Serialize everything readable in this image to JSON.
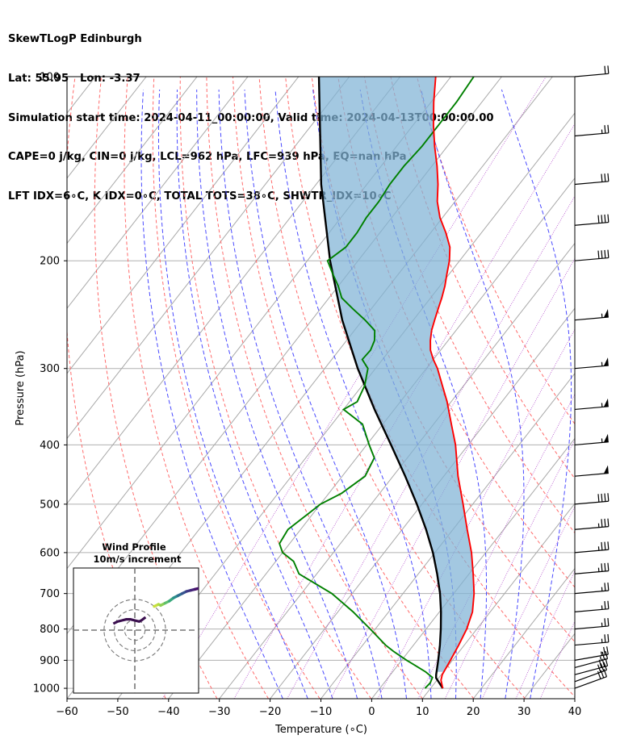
{
  "title_lines": [
    "SkewTLogP Edinburgh",
    "Lat: 55.95   Lon: -3.37",
    "Simulation start time: 2024-04-11_00:00:00, Valid time: 2024-04-13T00:00:00.00",
    "CAPE=0 j/kg, CIN=0 j/kg, LCL=962 hPa, LFC=939 hPa, EQ=nan hPa",
    "LFT IDX=6∘C, K IDX=0∘C, TOTAL TOTS=38∘C, SHWTR_IDX=10∘C"
  ],
  "chart_data": {
    "type": "skewt-logp",
    "xlabel": "Temperature (∘C)",
    "ylabel": "Pressure (hPa)",
    "xlim": [
      -60,
      40
    ],
    "ylim": [
      1040,
      100
    ],
    "x_ticks": [
      -60,
      -50,
      -40,
      -30,
      -20,
      -10,
      0,
      10,
      20,
      30,
      40
    ],
    "x_tick_labels": [
      "−60",
      "−50",
      "−40",
      "−30",
      "−20",
      "−10",
      "0",
      "10",
      "20",
      "30",
      "40"
    ],
    "y_ticks": [
      1000,
      900,
      800,
      700,
      600,
      500,
      400,
      300,
      200,
      100
    ],
    "y_tick_labels": [
      "1000",
      "900",
      "800",
      "700",
      "600",
      "500",
      "400",
      "300",
      "200",
      "100"
    ],
    "temperature": {
      "color": "#ff0000",
      "pressure": [
        1000,
        970,
        950,
        900,
        850,
        800,
        750,
        700,
        650,
        600,
        550,
        500,
        450,
        400,
        370,
        340,
        320,
        300,
        290,
        280,
        270,
        260,
        250,
        240,
        230,
        220,
        210,
        200,
        190,
        180,
        170,
        160,
        150,
        140,
        130,
        120,
        110,
        100
      ],
      "values": [
        12.4,
        10.8,
        10.2,
        9.6,
        8.9,
        8.0,
        6.5,
        4.0,
        0.8,
        -2.8,
        -7.2,
        -11.9,
        -17.2,
        -22.5,
        -26.5,
        -30.8,
        -34.2,
        -37.8,
        -40.0,
        -42.0,
        -43.5,
        -44.8,
        -45.8,
        -46.8,
        -47.8,
        -49.0,
        -50.5,
        -52.0,
        -54.0,
        -57.0,
        -60.5,
        -63.5,
        -66.0,
        -69.0,
        -72.5,
        -76.0,
        -79.5,
        -83.0
      ]
    },
    "dewpoint": {
      "color": "#008000",
      "pressure": [
        1000,
        980,
        960,
        940,
        920,
        900,
        870,
        850,
        800,
        750,
        700,
        650,
        620,
        600,
        580,
        550,
        520,
        500,
        480,
        450,
        420,
        400,
        370,
        350,
        340,
        320,
        300,
        290,
        280,
        270,
        260,
        250,
        240,
        230,
        220,
        210,
        200,
        190,
        180,
        170,
        160,
        150,
        140,
        130,
        120,
        110,
        100
      ],
      "values": [
        8.9,
        9.1,
        8.7,
        6.5,
        3.8,
        1.0,
        -3.0,
        -5.5,
        -11.0,
        -17.0,
        -24.0,
        -33.5,
        -36.5,
        -40.0,
        -42.0,
        -42.5,
        -41.0,
        -40.0,
        -37.5,
        -35.5,
        -36.5,
        -39.5,
        -44.0,
        -50.0,
        -48.5,
        -49.5,
        -51.5,
        -54.0,
        -53.8,
        -54.5,
        -56.0,
        -59.5,
        -63.5,
        -67.5,
        -70.0,
        -73.0,
        -76.0,
        -74.5,
        -74.5,
        -75.0,
        -75.0,
        -75.5,
        -75.5,
        -75.0,
        -75.0,
        -75.0,
        -75.5
      ]
    },
    "parcel": {
      "color": "#000000",
      "pressure": [
        1000,
        962,
        950,
        900,
        850,
        800,
        750,
        700,
        650,
        600,
        550,
        500,
        450,
        400,
        350,
        300,
        250,
        200,
        150,
        100
      ],
      "values": [
        12.4,
        9.5,
        9.0,
        7.2,
        5.2,
        2.9,
        0.3,
        -2.7,
        -6.3,
        -10.4,
        -15.3,
        -21.0,
        -27.6,
        -35.2,
        -43.9,
        -53.5,
        -64.0,
        -75.5,
        -89.0,
        -106.0
      ]
    },
    "cape_shading": {
      "color": "#7fb3d5"
    },
    "dry_adiabat_thetas_K": [
      230,
      240,
      250,
      260,
      270,
      280,
      290,
      300,
      310,
      320,
      330,
      340,
      350,
      360
    ],
    "moist_adiabat_start_C": [
      -20,
      -15,
      -10,
      -5,
      0,
      5,
      10,
      15,
      20,
      25,
      30
    ],
    "mixing_ratio_lines_gkg": [
      0.1,
      0.4,
      1,
      2,
      4,
      7,
      10,
      16,
      24,
      32
    ],
    "wind_barbs": {
      "pressure": [
        1000,
        975,
        950,
        925,
        900,
        850,
        800,
        750,
        700,
        650,
        600,
        550,
        500,
        450,
        400,
        350,
        300,
        250,
        200,
        175,
        150,
        125,
        100
      ],
      "speed_kt": [
        30,
        30,
        30,
        25,
        25,
        25,
        25,
        25,
        25,
        35,
        35,
        35,
        40,
        50,
        55,
        55,
        55,
        55,
        40,
        40,
        30,
        25,
        20
      ],
      "direction_deg": [
        250,
        250,
        255,
        255,
        260,
        265,
        265,
        265,
        265,
        265,
        265,
        265,
        265,
        265,
        265,
        265,
        265,
        265,
        265,
        265,
        265,
        265,
        265
      ]
    },
    "hodograph": {
      "title_lines": [
        "Wind Profile",
        "10m/s increment"
      ],
      "rings_ms": [
        10,
        20,
        30
      ],
      "u": [
        9.0,
        11.0,
        12.0,
        14.0,
        16.0,
        18.0,
        20.0,
        22.0,
        24.0,
        26.0,
        28.0,
        30.0,
        32.0,
        34.0
      ],
      "v": [
        11.0,
        12.0,
        11.5,
        12.5,
        13.5,
        15.0,
        16.0,
        17.0,
        18.0,
        18.5,
        19.0,
        19.5,
        20.0,
        20.5
      ],
      "bottom_u": [
        -10.0,
        -8.0,
        -6.0,
        -4.0,
        -2.0,
        0.0,
        2.0,
        3.0,
        5.0
      ],
      "bottom_v": [
        3.0,
        4.0,
        4.5,
        5.0,
        5.0,
        4.5,
        4.0,
        4.5,
        6.0
      ]
    }
  }
}
